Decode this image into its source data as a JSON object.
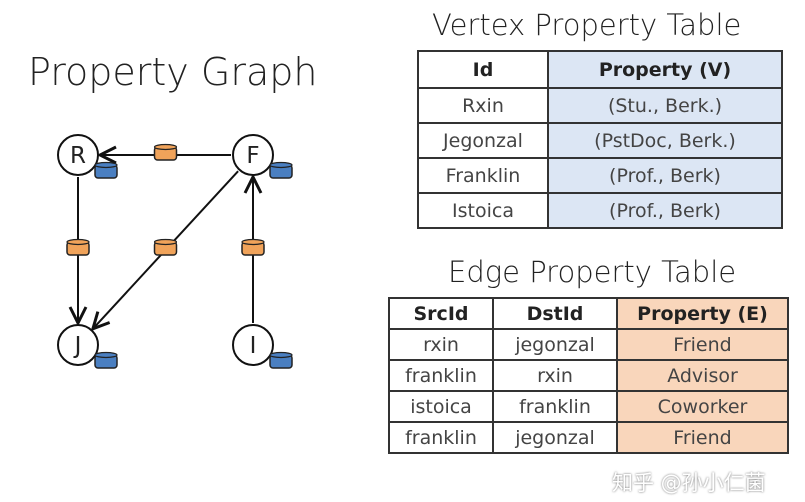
{
  "graph": {
    "title": "Property Graph",
    "vertices": [
      {
        "label": "R"
      },
      {
        "label": "F"
      },
      {
        "label": "J"
      },
      {
        "label": "I"
      }
    ],
    "edges": [
      {
        "from": "F",
        "to": "R"
      },
      {
        "from": "R",
        "to": "J"
      },
      {
        "from": "F",
        "to": "J"
      },
      {
        "from": "I",
        "to": "F"
      }
    ],
    "vertex_property_color": "#4a7fc1",
    "edge_property_color": "#f0a35a"
  },
  "vertex_table": {
    "title": "Vertex Property Table",
    "headers": [
      "Id",
      "Property (V)"
    ],
    "rows": [
      [
        "Rxin",
        "(Stu., Berk.)"
      ],
      [
        "Jegonzal",
        "(PstDoc, Berk.)"
      ],
      [
        "Franklin",
        "(Prof., Berk)"
      ],
      [
        "Istoica",
        "(Prof., Berk)"
      ]
    ]
  },
  "edge_table": {
    "title": "Edge Property Table",
    "headers": [
      "SrcId",
      "DstId",
      "Property (E)"
    ],
    "rows": [
      [
        "rxin",
        "jegonzal",
        "Friend"
      ],
      [
        "franklin",
        "rxin",
        "Advisor"
      ],
      [
        "istoica",
        "franklin",
        "Coworker"
      ],
      [
        "franklin",
        "jegonzal",
        "Friend"
      ]
    ]
  },
  "watermark": "知乎 @孙小仁菌"
}
